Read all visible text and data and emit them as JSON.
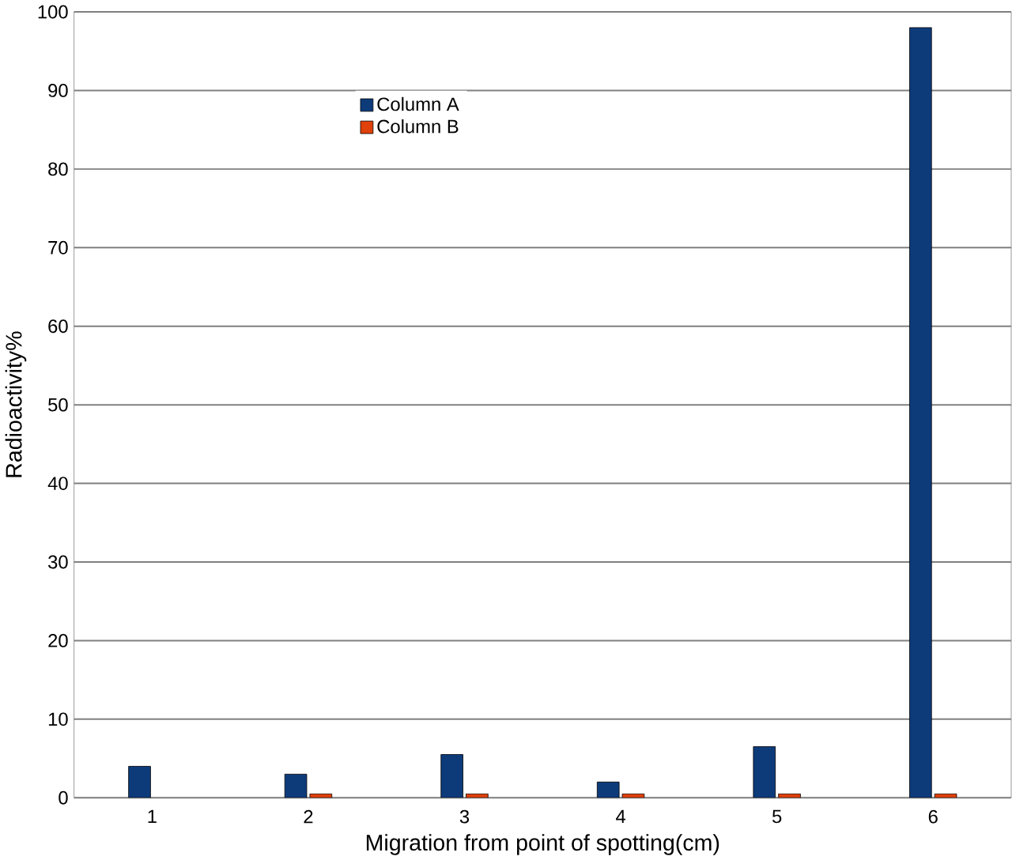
{
  "chart_data": {
    "type": "bar",
    "xlabel": "Migration from point of spotting(cm)",
    "ylabel": "Radioactivity%",
    "categories": [
      "1",
      "2",
      "3",
      "4",
      "5",
      "6"
    ],
    "series": [
      {
        "name": "Column A",
        "color": "#0d3b7a",
        "values": [
          4,
          3,
          5.5,
          2,
          6.5,
          98
        ]
      },
      {
        "name": "Column B",
        "color": "#e0400a",
        "values": [
          null,
          0.5,
          0.5,
          0.5,
          0.5,
          0.5
        ]
      }
    ],
    "ylim": [
      0,
      100
    ],
    "yticks": [
      0,
      10,
      20,
      30,
      40,
      50,
      60,
      70,
      80,
      90,
      100
    ],
    "grid": "y",
    "legend": "top"
  }
}
